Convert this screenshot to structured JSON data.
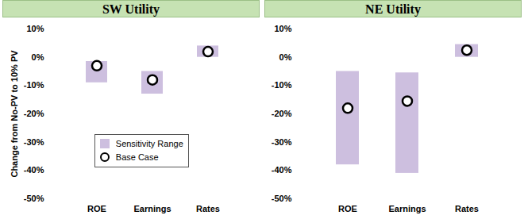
{
  "chart_data": [
    {
      "type": "bar",
      "title": "SW Utility",
      "ylabel": "Change from No-PV to 10% PV",
      "categories": [
        "ROE",
        "Earnings",
        "Rates"
      ],
      "series": [
        {
          "name": "Sensitivity Range",
          "type": "bar",
          "color": "#cdbfdf",
          "values": [
            [
              -9,
              -1.5
            ],
            [
              -13,
              -5
            ],
            [
              0,
              4
            ]
          ]
        },
        {
          "name": "Base Case",
          "type": "scatter",
          "marker": "circle",
          "color": "#000000",
          "values": [
            -3,
            -8,
            2
          ]
        }
      ],
      "ylim": [
        -50,
        10
      ],
      "yticks": [
        {
          "value": -50,
          "label": "-50%"
        },
        {
          "value": -40,
          "label": "-40%"
        },
        {
          "value": -30,
          "label": "-30%"
        },
        {
          "value": -20,
          "label": "-20%"
        },
        {
          "value": -10,
          "label": "-10%"
        },
        {
          "value": 0,
          "label": "0%"
        },
        {
          "value": 10,
          "label": "10%"
        }
      ],
      "grid": false,
      "legend": "bottom"
    },
    {
      "type": "bar",
      "title": "NE Utility",
      "categories": [
        "ROE",
        "Earnings",
        "Rates"
      ],
      "series": [
        {
          "name": "Sensitivity Range",
          "type": "bar",
          "color": "#cdbfdf",
          "values": [
            [
              -38,
              -5
            ],
            [
              -41,
              -5.5
            ],
            [
              0,
              4.5
            ]
          ]
        },
        {
          "name": "Base Case",
          "type": "scatter",
          "marker": "circle",
          "color": "#000000",
          "values": [
            -18,
            -15.5,
            2.5
          ]
        }
      ],
      "ylim": [
        -50,
        10
      ],
      "yticks": [
        {
          "value": -50,
          "label": "-50%"
        },
        {
          "value": -40,
          "label": "-40%"
        },
        {
          "value": -30,
          "label": "-30%"
        },
        {
          "value": -20,
          "label": "-20%"
        },
        {
          "value": -10,
          "label": "-10%"
        },
        {
          "value": 0,
          "label": "0%"
        },
        {
          "value": 10,
          "label": "10%"
        }
      ],
      "grid": false
    }
  ]
}
